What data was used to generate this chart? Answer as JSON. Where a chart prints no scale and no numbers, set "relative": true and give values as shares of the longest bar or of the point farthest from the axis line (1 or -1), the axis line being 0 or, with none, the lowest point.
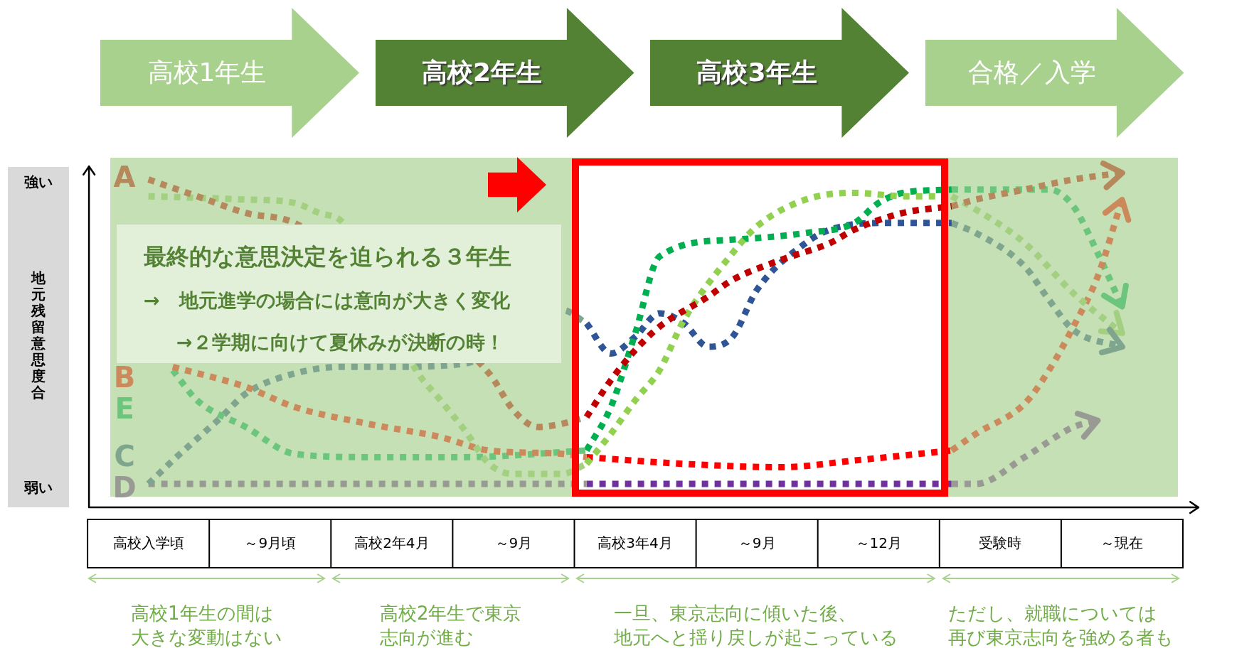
{
  "chart_data": {
    "type": "line",
    "relative": true,
    "ylabel": "地元残留意思度合",
    "line_style": "dotted",
    "marker": "none",
    "legend": false,
    "grid": false,
    "categories": [
      null,
      null,
      "高校入学頃",
      null,
      null,
      null,
      null,
      "～9月頃",
      null,
      null,
      null,
      null,
      "高校2年4月",
      null,
      null,
      null,
      null,
      "～9月",
      null,
      null,
      null,
      null,
      "高校3年4月",
      null,
      null,
      null,
      null,
      "～9月",
      null,
      null,
      null,
      null,
      "～12月",
      null,
      null,
      null,
      null,
      "受験時",
      null,
      null,
      null,
      null,
      "～現在",
      null,
      null
    ],
    "annotations": [
      "高校1年生",
      "高校2年生",
      "高校3年生",
      "合格／入学",
      "最終的な意思決定を迫られる３年生",
      "→　地元進学の場合には意向が大きく変化",
      "→２学期に向けて夏休みが決断の時！",
      "高校1年生の間は",
      "大きな変動はない",
      "高校2年生で東京",
      "志向が進む",
      "一旦、東京志向に傾いた後、",
      "地元へと揺り戻しが起こっている",
      "ただし、就職については",
      "再び東京志向を強める者も",
      "強い",
      "弱い"
    ],
    "series": [
      {
        "name": "A",
        "color": "#b5895b",
        "values": [
          null,
          null,
          0.98,
          null,
          0.93,
          null,
          0.88,
          null,
          0.85,
          null,
          null,
          null,
          null,
          null,
          null,
          null,
          0.4,
          0.29,
          0.24,
          0.25,
          0.27,
          null,
          null,
          null,
          null,
          null,
          null,
          null,
          null,
          null,
          null,
          null,
          null,
          null,
          null,
          null,
          null,
          null,
          null,
          null,
          null,
          null,
          null,
          null,
          null
        ]
      },
      {
        "color": "#a3cf80",
        "values": [
          null,
          null,
          0.93,
          null,
          null,
          null,
          0.92,
          null,
          0.91,
          0.88,
          0.85,
          null,
          null,
          0.41,
          0.32,
          0.23,
          0.13,
          0.1,
          null,
          0.1,
          0.13,
          null,
          null,
          null,
          null,
          null,
          null,
          null,
          null,
          null,
          null,
          null,
          null,
          null,
          null,
          null,
          null,
          null,
          null,
          null,
          null,
          null,
          null,
          null,
          null
        ]
      },
      {
        "name": "B",
        "color": "#cc8a5c",
        "values": [
          null,
          null,
          null,
          0.42,
          null,
          null,
          0.36,
          null,
          0.3,
          null,
          null,
          0.25,
          null,
          null,
          0.21,
          null,
          0.17,
          null,
          null,
          0.16,
          0.15,
          null,
          null,
          null,
          null,
          null,
          null,
          null,
          null,
          null,
          null,
          null,
          null,
          null,
          null,
          null,
          null,
          null,
          null,
          null,
          null,
          null,
          null,
          null,
          null
        ]
      },
      {
        "name": "E",
        "color": "#6cc57c",
        "values": [
          null,
          null,
          null,
          0.41,
          0.32,
          null,
          0.24,
          null,
          0.16,
          null,
          null,
          0.15,
          null,
          null,
          null,
          0.15,
          null,
          null,
          null,
          null,
          0.17,
          null,
          null,
          null,
          null,
          null,
          null,
          null,
          null,
          null,
          null,
          null,
          null,
          null,
          null,
          null,
          null,
          null,
          null,
          null,
          null,
          null,
          null,
          null,
          null
        ]
      },
      {
        "name": "C",
        "color": "#7fa58f",
        "values": [
          null,
          null,
          0.07,
          0.14,
          null,
          0.27,
          0.34,
          null,
          0.4,
          null,
          0.42,
          null,
          0.42,
          null,
          null,
          0.43,
          null,
          null,
          null,
          0.59,
          0.55,
          null,
          null,
          null,
          null,
          null,
          null,
          null,
          null,
          null,
          null,
          null,
          null,
          null,
          null,
          null,
          null,
          null,
          null,
          null,
          null,
          null,
          null,
          null,
          null
        ]
      },
      {
        "name": "D",
        "color": "#999a94",
        "values": [
          null,
          null,
          0.07,
          null,
          null,
          null,
          null,
          null,
          null,
          null,
          0.07,
          null,
          null,
          null,
          null,
          null,
          null,
          null,
          null,
          null,
          0.07,
          null,
          null,
          null,
          null,
          null,
          null,
          null,
          null,
          null,
          null,
          null,
          null,
          null,
          null,
          null,
          null,
          null,
          null,
          null,
          null,
          null,
          null,
          null,
          null
        ]
      },
      {
        "color": "#c00000",
        "values": [
          null,
          null,
          null,
          null,
          null,
          null,
          null,
          null,
          null,
          null,
          null,
          null,
          null,
          null,
          null,
          null,
          null,
          null,
          null,
          null,
          0.27,
          0.38,
          0.47,
          0.54,
          null,
          0.63,
          0.68,
          null,
          0.74,
          null,
          0.79,
          0.83,
          null,
          0.88,
          null,
          0.9,
          null,
          null,
          null,
          null,
          null,
          null,
          null,
          null,
          null
        ]
      },
      {
        "color": "#92d050",
        "values": [
          null,
          null,
          null,
          null,
          null,
          null,
          null,
          null,
          null,
          null,
          null,
          null,
          null,
          null,
          null,
          null,
          null,
          null,
          null,
          null,
          0.13,
          0.22,
          0.32,
          0.41,
          0.56,
          null,
          0.76,
          0.84,
          null,
          0.92,
          null,
          0.94,
          null,
          0.93,
          null,
          0.93,
          null,
          null,
          null,
          null,
          null,
          null,
          null,
          null,
          null
        ]
      },
      {
        "color": "#ff0000",
        "values": [
          null,
          null,
          null,
          null,
          null,
          null,
          null,
          null,
          null,
          null,
          null,
          null,
          null,
          null,
          null,
          null,
          null,
          null,
          null,
          null,
          0.15,
          null,
          null,
          null,
          0.13,
          null,
          null,
          null,
          0.12,
          null,
          null,
          0.14,
          null,
          null,
          null,
          0.17,
          null,
          null,
          null,
          null,
          null,
          null,
          null,
          null,
          null
        ]
      },
      {
        "color": "#00b050",
        "values": [
          null,
          null,
          null,
          null,
          null,
          null,
          null,
          null,
          null,
          null,
          null,
          null,
          null,
          null,
          null,
          null,
          null,
          null,
          null,
          null,
          0.17,
          0.3,
          0.52,
          0.75,
          null,
          null,
          0.8,
          null,
          null,
          0.82,
          null,
          0.85,
          0.91,
          0.94,
          null,
          0.95,
          null,
          null,
          null,
          null,
          null,
          null,
          null,
          null,
          null
        ]
      },
      {
        "color": "#2f5597",
        "values": [
          null,
          null,
          null,
          null,
          null,
          null,
          null,
          null,
          null,
          null,
          null,
          null,
          null,
          null,
          null,
          null,
          null,
          null,
          null,
          null,
          0.55,
          0.46,
          0.51,
          0.58,
          0.55,
          0.48,
          0.51,
          0.65,
          null,
          0.79,
          0.83,
          null,
          0.85,
          null,
          null,
          0.85,
          null,
          null,
          null,
          null,
          null,
          null,
          null,
          null,
          null
        ]
      },
      {
        "color": "#7030a0",
        "values": [
          null,
          null,
          null,
          null,
          null,
          null,
          null,
          null,
          null,
          null,
          null,
          null,
          null,
          null,
          null,
          null,
          null,
          null,
          null,
          null,
          0.07,
          null,
          null,
          null,
          null,
          null,
          null,
          null,
          null,
          null,
          null,
          null,
          null,
          null,
          null,
          0.07,
          null,
          null,
          null,
          null,
          null,
          null,
          null,
          null,
          null
        ]
      },
      {
        "color": "#b5895b",
        "values": [
          null,
          null,
          null,
          null,
          null,
          null,
          null,
          null,
          null,
          null,
          null,
          null,
          null,
          null,
          null,
          null,
          null,
          null,
          null,
          null,
          null,
          null,
          null,
          null,
          null,
          null,
          null,
          null,
          null,
          null,
          null,
          null,
          null,
          null,
          null,
          0.9,
          0.92,
          null,
          0.95,
          null,
          0.98,
          null,
          1,
          null,
          null
        ]
      },
      {
        "color": "#a3cf80",
        "values": [
          null,
          null,
          null,
          null,
          null,
          null,
          null,
          null,
          null,
          null,
          null,
          null,
          null,
          null,
          null,
          null,
          null,
          null,
          null,
          null,
          null,
          null,
          null,
          null,
          null,
          null,
          null,
          null,
          null,
          null,
          null,
          null,
          null,
          null,
          null,
          0.93,
          0.89,
          null,
          0.79,
          null,
          0.64,
          null,
          0.52,
          null,
          null
        ]
      },
      {
        "color": "#cc8a5c",
        "values": [
          null,
          null,
          null,
          null,
          null,
          null,
          null,
          null,
          null,
          null,
          null,
          null,
          null,
          null,
          null,
          null,
          null,
          null,
          null,
          null,
          null,
          null,
          null,
          null,
          null,
          null,
          null,
          null,
          null,
          null,
          null,
          null,
          null,
          null,
          null,
          0.17,
          0.22,
          null,
          0.31,
          0.41,
          0.54,
          0.69,
          0.92,
          null,
          null
        ]
      },
      {
        "color": "#6cc57c",
        "values": [
          null,
          null,
          null,
          null,
          null,
          null,
          null,
          null,
          null,
          null,
          null,
          null,
          null,
          null,
          null,
          null,
          null,
          null,
          null,
          null,
          null,
          null,
          null,
          null,
          null,
          null,
          null,
          null,
          null,
          null,
          null,
          null,
          null,
          null,
          null,
          0.95,
          0.95,
          null,
          null,
          0.95,
          0.9,
          0.76,
          0.6,
          null,
          null
        ]
      },
      {
        "color": "#7fa58f",
        "values": [
          null,
          null,
          null,
          null,
          null,
          null,
          null,
          null,
          null,
          null,
          null,
          null,
          null,
          null,
          null,
          null,
          null,
          null,
          null,
          null,
          null,
          null,
          null,
          null,
          null,
          null,
          null,
          null,
          null,
          null,
          null,
          null,
          null,
          null,
          null,
          0.85,
          0.82,
          null,
          0.72,
          0.62,
          0.53,
          null,
          0.48,
          null,
          null
        ]
      },
      {
        "color": "#999a94",
        "values": [
          null,
          null,
          null,
          null,
          null,
          null,
          null,
          null,
          null,
          null,
          null,
          null,
          null,
          null,
          null,
          null,
          null,
          null,
          null,
          null,
          null,
          null,
          null,
          null,
          null,
          null,
          null,
          null,
          null,
          null,
          null,
          null,
          null,
          null,
          null,
          0.07,
          0.07,
          null,
          0.15,
          null,
          0.24,
          0.26,
          null,
          null,
          null
        ]
      }
    ]
  }
}
